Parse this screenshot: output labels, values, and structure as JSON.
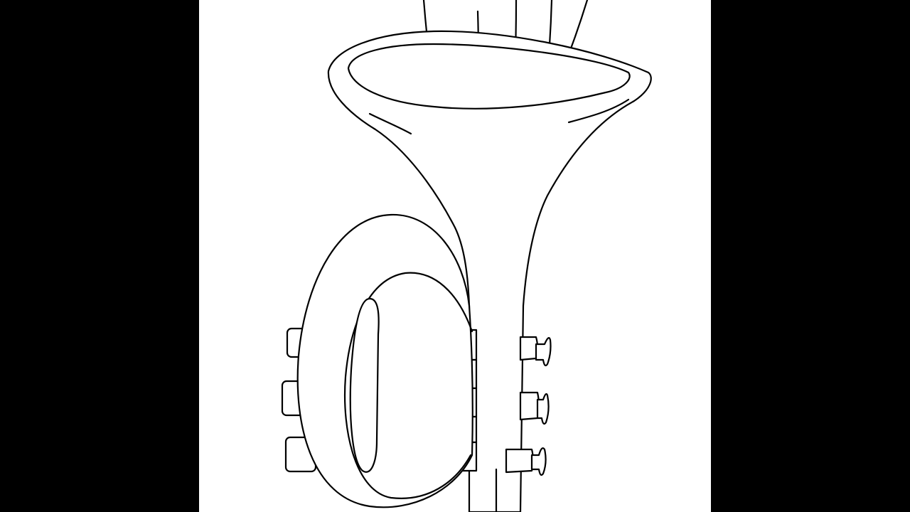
{
  "image": {
    "subject": "tuba-drawing",
    "style": "black-ink-line-art",
    "background_color": "#ffffff",
    "ink_color": "#000000",
    "letterbox_color": "#000000"
  }
}
